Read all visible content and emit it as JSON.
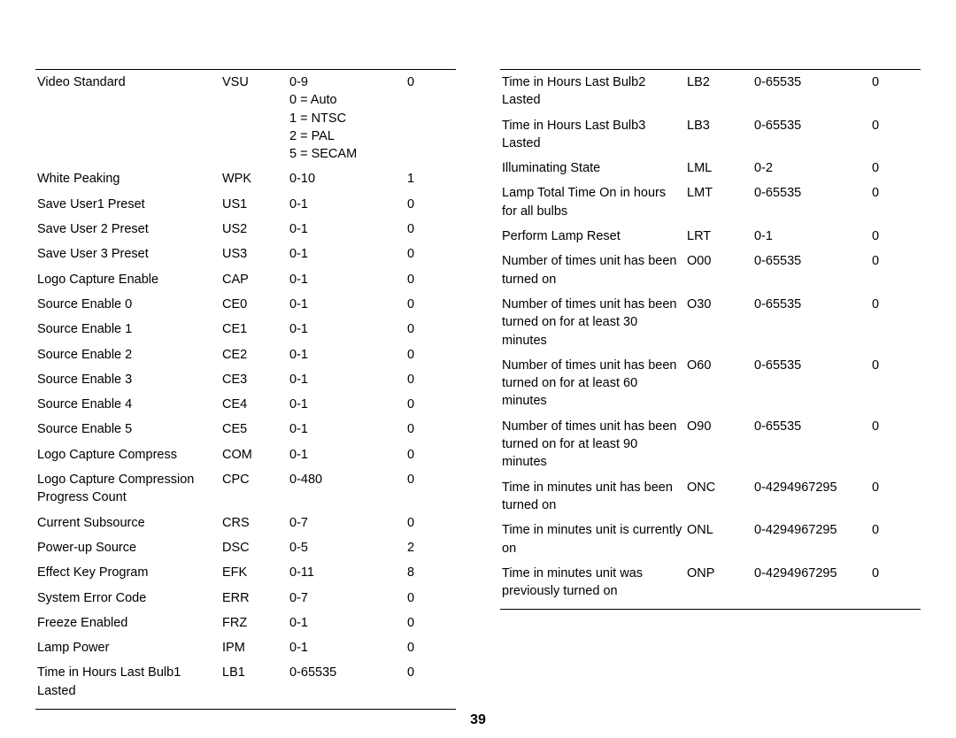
{
  "page_number": "39",
  "left_table": {
    "rows": [
      {
        "desc": "Video Standard",
        "code": "VSU",
        "range": "0-9\n0 = Auto\n1 = NTSC\n2 = PAL\n5 = SECAM",
        "val": "0"
      },
      {
        "desc": "White Peaking",
        "code": "WPK",
        "range": "0-10",
        "val": "1"
      },
      {
        "desc": "Save User1 Preset",
        "code": "US1",
        "range": "0-1",
        "val": "0"
      },
      {
        "desc": "Save User 2 Preset",
        "code": "US2",
        "range": "0-1",
        "val": "0"
      },
      {
        "desc": "Save User 3 Preset",
        "code": "US3",
        "range": "0-1",
        "val": "0"
      },
      {
        "desc": "Logo Capture Enable",
        "code": "CAP",
        "range": "0-1",
        "val": "0"
      },
      {
        "desc": "Source Enable 0",
        "code": "CE0",
        "range": "0-1",
        "val": "0"
      },
      {
        "desc": "Source Enable 1",
        "code": "CE1",
        "range": "0-1",
        "val": "0"
      },
      {
        "desc": "Source Enable 2",
        "code": "CE2",
        "range": "0-1",
        "val": "0"
      },
      {
        "desc": "Source Enable 3",
        "code": "CE3",
        "range": "0-1",
        "val": "0"
      },
      {
        "desc": "Source Enable 4",
        "code": "CE4",
        "range": "0-1",
        "val": "0"
      },
      {
        "desc": "Source Enable 5",
        "code": "CE5",
        "range": "0-1",
        "val": "0"
      },
      {
        "desc": "Logo Capture Compress",
        "code": "COM",
        "range": "0-1",
        "val": "0"
      },
      {
        "desc": "Logo Capture Compression Progress Count",
        "code": "CPC",
        "range": "0-480",
        "val": "0"
      },
      {
        "desc": "Current Subsource",
        "code": "CRS",
        "range": "0-7",
        "val": "0"
      },
      {
        "desc": "Power-up Source",
        "code": "DSC",
        "range": "0-5",
        "val": "2"
      },
      {
        "desc": "Effect Key Program",
        "code": "EFK",
        "range": "0-11",
        "val": "8"
      },
      {
        "desc": "System Error Code",
        "code": "ERR",
        "range": "0-7",
        "val": "0"
      },
      {
        "desc": "Freeze Enabled",
        "code": "FRZ",
        "range": "0-1",
        "val": "0"
      },
      {
        "desc": "Lamp Power",
        "code": "IPM",
        "range": "0-1",
        "val": "0"
      },
      {
        "desc": "Time in Hours Last Bulb1 Lasted",
        "code": "LB1",
        "range": "0-65535",
        "val": "0"
      }
    ]
  },
  "right_table": {
    "rows": [
      {
        "desc": "Time in Hours Last Bulb2 Lasted",
        "code": "LB2",
        "range": "0-65535",
        "val": "0"
      },
      {
        "desc": "Time in Hours Last Bulb3 Lasted",
        "code": "LB3",
        "range": "0-65535",
        "val": "0"
      },
      {
        "desc": "Illuminating State",
        "code": "LML",
        "range": "0-2",
        "val": "0"
      },
      {
        "desc": "Lamp Total Time On in hours for all bulbs",
        "code": "LMT",
        "range": "0-65535",
        "val": "0"
      },
      {
        "desc": "Perform Lamp Reset",
        "code": "LRT",
        "range": "0-1",
        "val": "0"
      },
      {
        "desc": "Number of times unit has been turned on",
        "code": "O00",
        "range": "0-65535",
        "val": "0"
      },
      {
        "desc": "Number of times unit has been turned on for at least 30 minutes",
        "code": "O30",
        "range": "0-65535",
        "val": "0"
      },
      {
        "desc": "Number of times unit has been turned on for at least 60 minutes",
        "code": "O60",
        "range": "0-65535",
        "val": "0"
      },
      {
        "desc": "Number of times unit has been turned on for at least 90 minutes",
        "code": "O90",
        "range": "0-65535",
        "val": "0"
      },
      {
        "desc": "Time in minutes unit has been turned on",
        "code": "ONC",
        "range": "0-4294967295",
        "val": "0"
      },
      {
        "desc": "Time in minutes unit is currently on",
        "code": "ONL",
        "range": "0-4294967295",
        "val": "0"
      },
      {
        "desc": "Time in minutes unit was previously turned on",
        "code": "ONP",
        "range": "0-4294967295",
        "val": "0"
      }
    ]
  }
}
